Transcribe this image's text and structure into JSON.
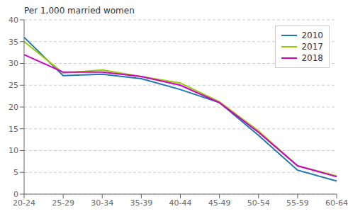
{
  "chart_data": {
    "type": "line",
    "ylabel": "Per 1,000 married women",
    "categories": [
      "20-24",
      "25-29",
      "30-34",
      "35-39",
      "40-44",
      "45-49",
      "50-54",
      "55-59",
      "60-64"
    ],
    "series": [
      {
        "name": "2010",
        "color": "#1f77b4",
        "values": [
          36.0,
          27.2,
          27.5,
          26.5,
          24.0,
          21.0,
          13.5,
          5.5,
          3.0
        ]
      },
      {
        "name": "2017",
        "color": "#99cc00",
        "values": [
          35.0,
          27.8,
          28.5,
          27.0,
          25.5,
          21.2,
          14.5,
          6.5,
          4.2
        ]
      },
      {
        "name": "2018",
        "color": "#cc00cc",
        "values": [
          32.0,
          28.0,
          28.0,
          27.0,
          25.0,
          21.0,
          14.2,
          6.5,
          4.0
        ]
      }
    ],
    "ylim": [
      0,
      40
    ],
    "yticks": [
      0,
      5,
      10,
      15,
      20,
      25,
      30,
      35,
      40
    ],
    "grid": true,
    "legend": "upper right"
  }
}
